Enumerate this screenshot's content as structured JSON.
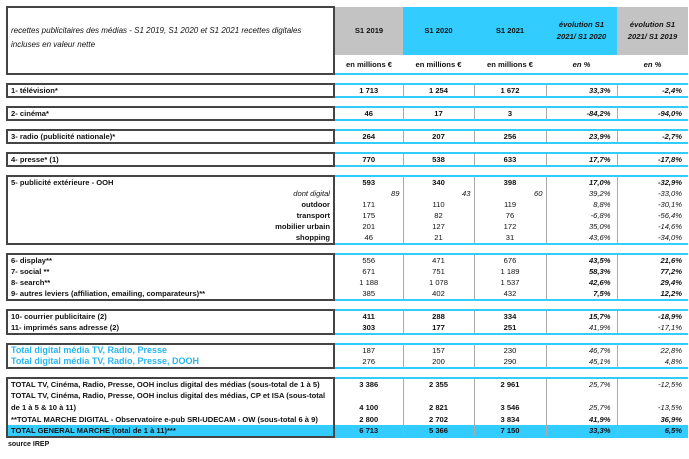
{
  "header": {
    "title": "recettes publicitaires des médias - S1 2019, S1 2020 et S1 2021 recettes digitales incluses en valeur nette",
    "columns": [
      "S1 2019",
      "S1 2020",
      "S1 2021",
      "évolution S1 2021/ S1 2020",
      "évolution S1 2021/ S1 2019"
    ],
    "units": [
      "en millions €",
      "en millions €",
      "en millions €",
      "en %",
      "en %"
    ]
  },
  "colors": {
    "accent": "#33ccff",
    "gray": "#c3c3c3",
    "blue_text": "#29b6f0"
  },
  "blocks": [
    {
      "rows": [
        {
          "kind": "item",
          "label": "1- télévision*",
          "values": [
            "1 713",
            "1 254",
            "1 672"
          ],
          "pcts": [
            "33,3%",
            "-2,4%"
          ]
        }
      ]
    },
    {
      "rows": [
        {
          "kind": "item",
          "label": "2- cinéma*",
          "values": [
            "46",
            "17",
            "3"
          ],
          "pcts": [
            "-84,2%",
            "-94,0%"
          ]
        }
      ]
    },
    {
      "rows": [
        {
          "kind": "item",
          "label": "3- radio (publicité nationale)*",
          "values": [
            "264",
            "207",
            "256"
          ],
          "pcts": [
            "23,9%",
            "-2,7%"
          ]
        }
      ]
    },
    {
      "rows": [
        {
          "kind": "item",
          "label": "4- presse* (1)",
          "values": [
            "770",
            "538",
            "633"
          ],
          "pcts": [
            "17,7%",
            "-17,8%"
          ]
        }
      ]
    },
    {
      "rows": [
        {
          "kind": "item",
          "label": "5- publicité extérieure - OOH",
          "values": [
            "593",
            "340",
            "398"
          ],
          "pcts": [
            "17,0%",
            "-32,9%"
          ]
        },
        {
          "kind": "ddig",
          "label": "dont digital",
          "values": [
            "89",
            "43",
            "60"
          ],
          "pcts": [
            "39,2%",
            "-33,0%"
          ]
        },
        {
          "kind": "sub",
          "label": "outdoor",
          "values": [
            "171",
            "110",
            "119"
          ],
          "pcts": [
            "8,8%",
            "-30,1%"
          ]
        },
        {
          "kind": "sub",
          "label": "transport",
          "values": [
            "175",
            "82",
            "76"
          ],
          "pcts": [
            "-6,8%",
            "-56,4%"
          ]
        },
        {
          "kind": "sub",
          "label": "mobilier urbain",
          "values": [
            "201",
            "127",
            "172"
          ],
          "pcts": [
            "35,0%",
            "-14,6%"
          ]
        },
        {
          "kind": "sub",
          "label": "shopping",
          "values": [
            "46",
            "21",
            "31"
          ],
          "pcts": [
            "43,6%",
            "-34,0%"
          ]
        }
      ]
    },
    {
      "rows": [
        {
          "kind": "digital",
          "label": "6- display**",
          "values": [
            "556",
            "471",
            "676"
          ],
          "pcts": [
            "43,5%",
            "21,6%"
          ]
        },
        {
          "kind": "digital",
          "label": "7- social **",
          "values": [
            "671",
            "751",
            "1 189"
          ],
          "pcts": [
            "58,3%",
            "77,2%"
          ]
        },
        {
          "kind": "digital",
          "label": "8- search**",
          "values": [
            "1 188",
            "1 078",
            "1 537"
          ],
          "pcts": [
            "42,6%",
            "29,4%"
          ]
        },
        {
          "kind": "digital",
          "label": "9- autres leviers (affiliation, emailing, comparateurs)**",
          "values": [
            "385",
            "402",
            "432"
          ],
          "pcts": [
            "7,5%",
            "12,2%"
          ]
        }
      ]
    },
    {
      "rows": [
        {
          "kind": "item",
          "label": "10- courrier publicitaire (2)",
          "values": [
            "411",
            "288",
            "334"
          ],
          "pcts": [
            "15,7%",
            "-18,9%"
          ]
        },
        {
          "kind": "item",
          "label": "11- imprimés sans adresse (2)",
          "values": [
            "303",
            "177",
            "251"
          ],
          "pcts": [
            "41,9%",
            "-17,1%"
          ]
        }
      ]
    },
    {
      "rows": [
        {
          "kind": "blue",
          "label": "Total digital média TV, Radio, Presse",
          "values": [
            "187",
            "157",
            "230"
          ],
          "pcts": [
            "46,7%",
            "22,8%"
          ]
        },
        {
          "kind": "blue",
          "label": "Total digital média TV, Radio, Presse, DOOH",
          "values": [
            "276",
            "200",
            "290"
          ],
          "pcts": [
            "45,1%",
            "4,8%"
          ]
        }
      ]
    },
    {
      "rows": [
        {
          "kind": "total",
          "label": "TOTAL TV, Cinéma, Radio, Presse, OOH inclus digital des médias (sous-total de 1 à 5)",
          "values": [
            "3 386",
            "2 355",
            "2 961"
          ],
          "pcts": [
            "25,7%",
            "-12,5%"
          ]
        },
        {
          "kind": "total2",
          "label": "TOTAL TV, Cinéma, Radio, Presse, OOH inclus digital des médias, CP et ISA (sous-total de 1 à 5 & 10 à 11)",
          "values": [
            "4 100",
            "2 821",
            "3 546"
          ],
          "pcts": [
            "25,7%",
            "-13,5%"
          ]
        },
        {
          "kind": "totaldig",
          "label": "**TOTAL MARCHE DIGITAL - Observatoire e-pub SRI-UDECAM - OW (sous-total 6 à 9)",
          "values": [
            "2 800",
            "2 702",
            "3 834"
          ],
          "pcts": [
            "41,9%",
            "36,9%"
          ]
        },
        {
          "kind": "general",
          "label": "TOTAL GENERAL MARCHE (total de 1 à 11)***",
          "values": [
            "6 713",
            "5 366",
            "7 150"
          ],
          "pcts": [
            "33,3%",
            "6,5%"
          ]
        }
      ]
    }
  ],
  "footer": {
    "source": "source IREP"
  }
}
